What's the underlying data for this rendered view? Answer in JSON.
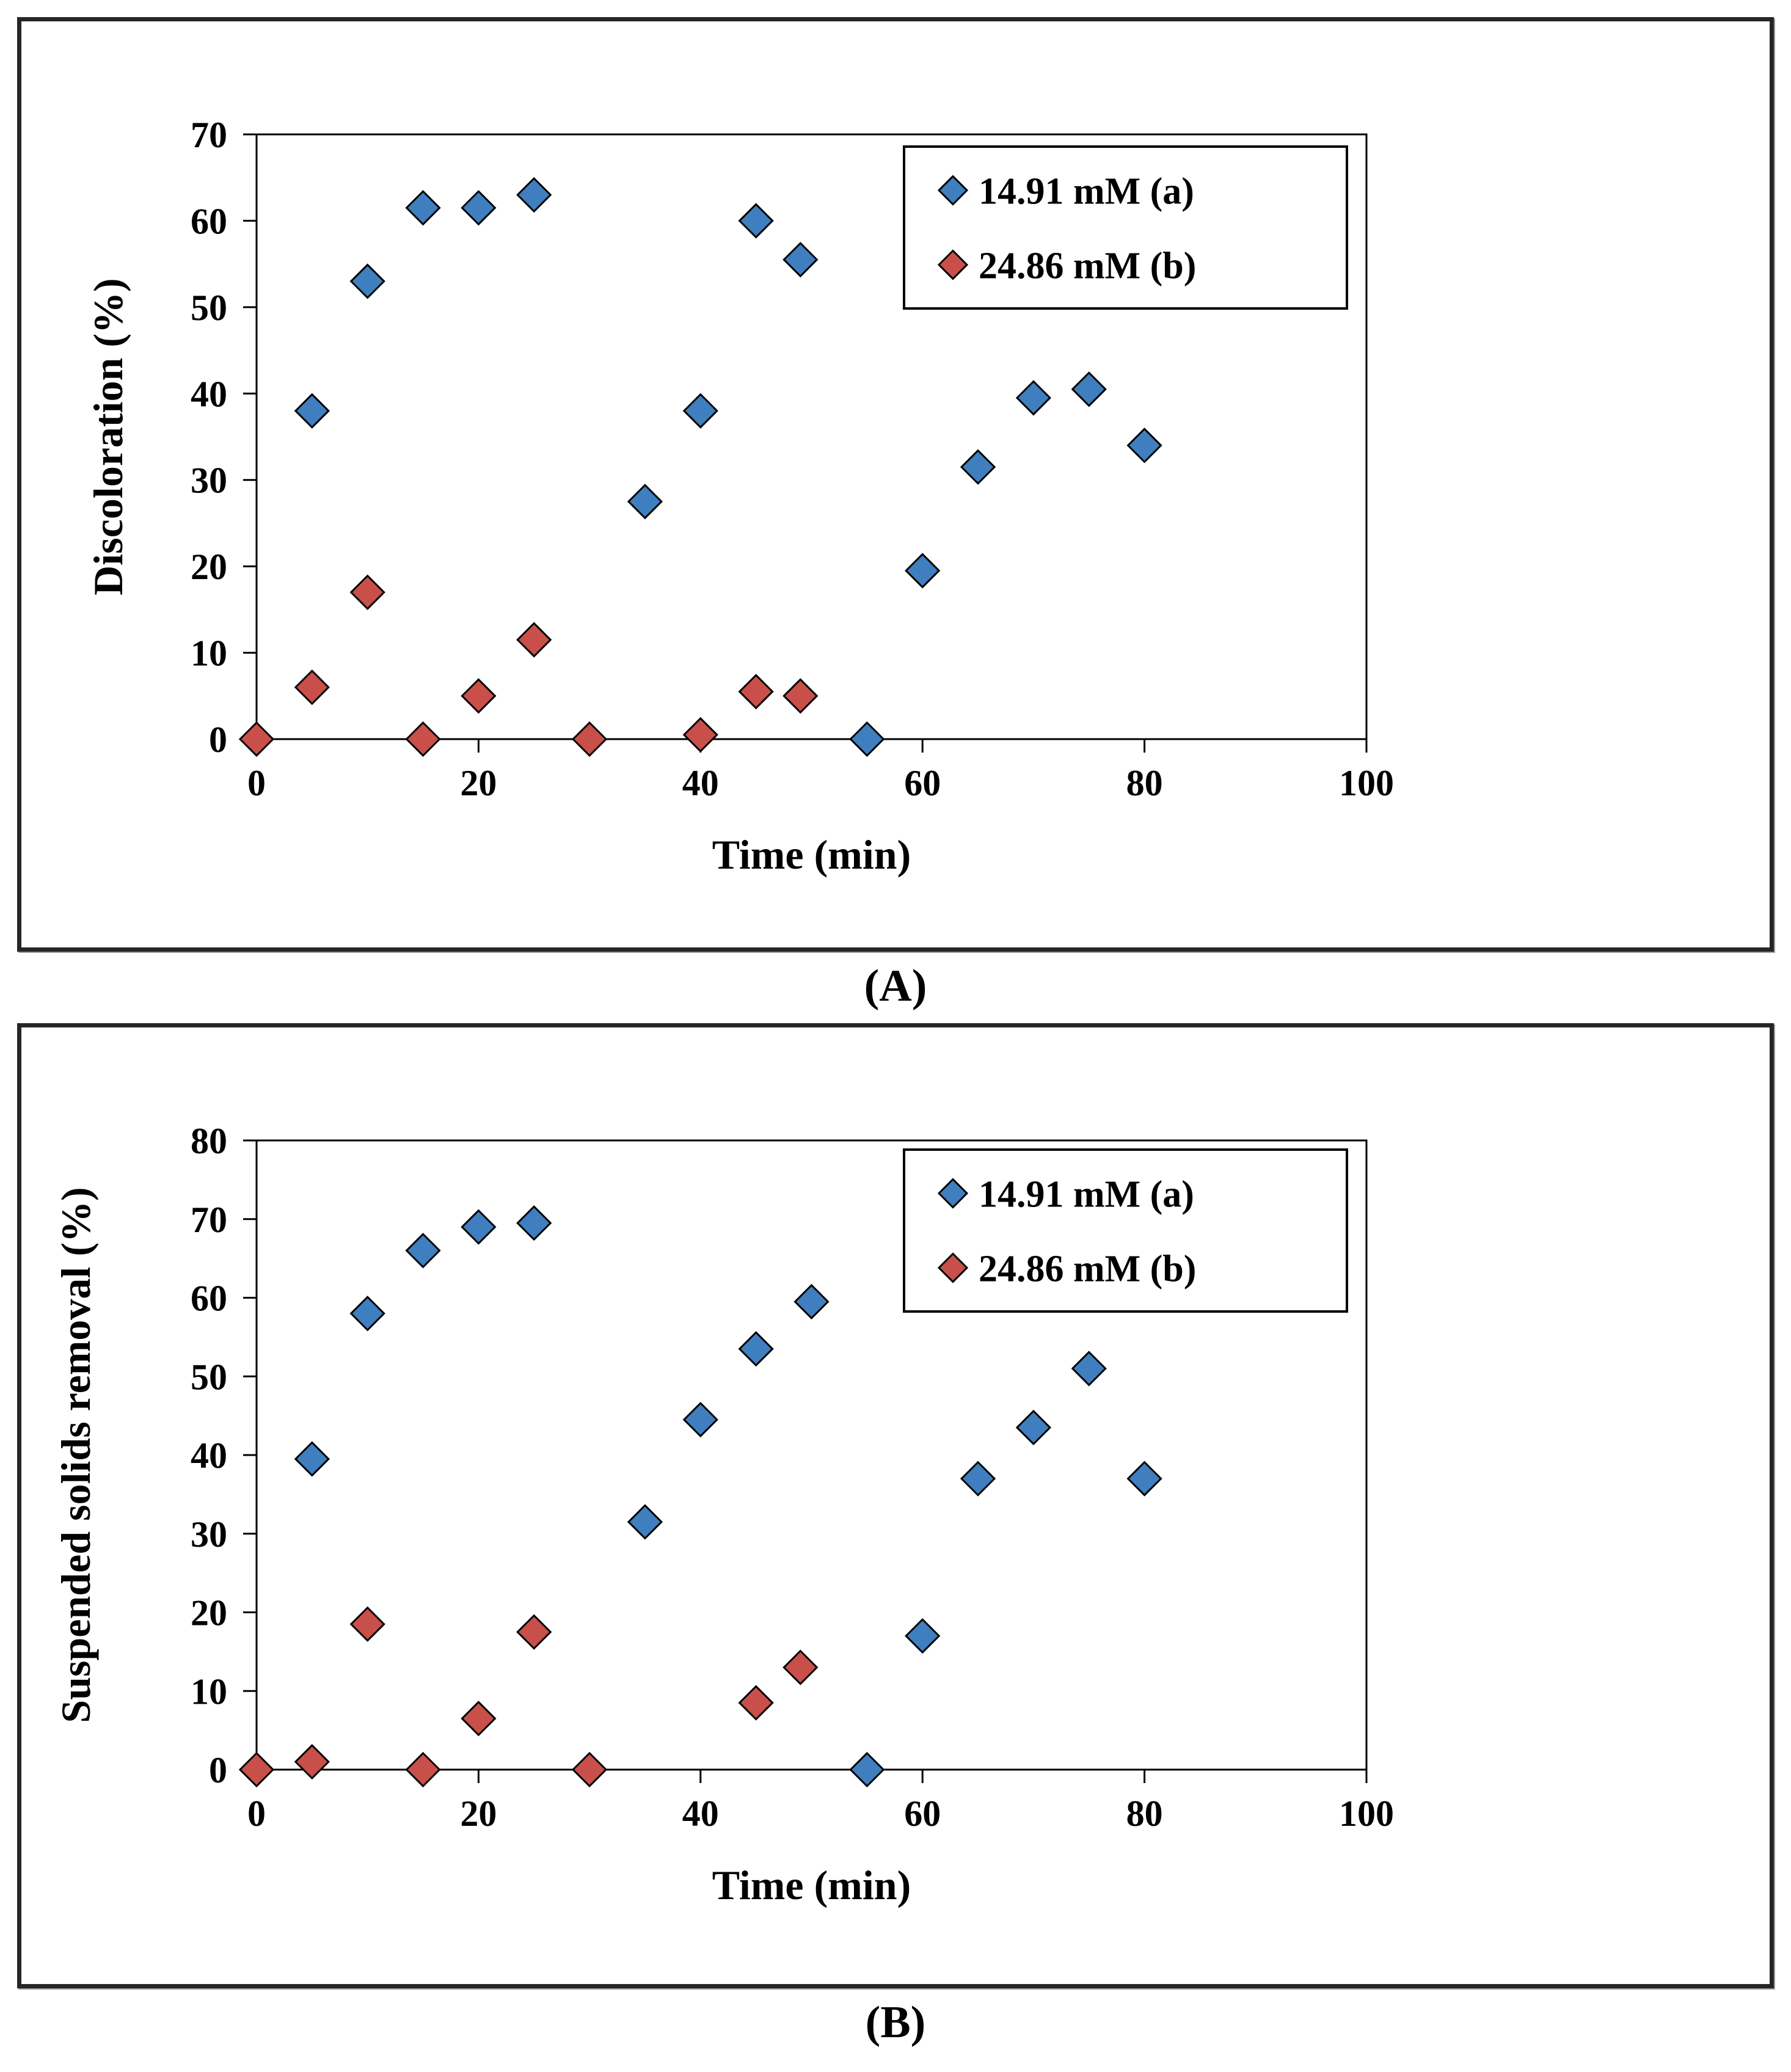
{
  "page": {
    "background": "#ffffff"
  },
  "colors": {
    "series_blue": "#3f7fbf",
    "series_red": "#c9504a",
    "marker_stroke": "#000000",
    "axis": "#000000",
    "panel_border": "#262626"
  },
  "panels": [
    {
      "label": "(A)"
    },
    {
      "label": "(B)"
    }
  ],
  "chart_data": [
    {
      "type": "scatter",
      "title": "",
      "xlabel": "Time (min)",
      "ylabel": "Discoloration (%)",
      "xlim": [
        0,
        100
      ],
      "ylim": [
        0,
        70
      ],
      "xticks": [
        0,
        20,
        40,
        60,
        80,
        100
      ],
      "yticks": [
        0,
        10,
        20,
        30,
        40,
        50,
        60,
        70
      ],
      "grid": false,
      "legend_position": "top-right-inside",
      "series": [
        {
          "name": "14.91 mM (a)",
          "marker": "diamond",
          "color": "#3f7fbf",
          "points": [
            [
              5,
              38
            ],
            [
              10,
              53
            ],
            [
              15,
              61.5
            ],
            [
              20,
              61.5
            ],
            [
              25,
              63
            ],
            [
              35,
              27.5
            ],
            [
              40,
              38
            ],
            [
              45,
              60
            ],
            [
              49,
              55.5
            ],
            [
              55,
              0
            ],
            [
              60,
              19.5
            ],
            [
              65,
              31.5
            ],
            [
              70,
              39.5
            ],
            [
              75,
              40.5
            ],
            [
              80,
              34
            ]
          ]
        },
        {
          "name": "24.86 mM (b)",
          "marker": "diamond",
          "color": "#c9504a",
          "points": [
            [
              0,
              0
            ],
            [
              5,
              6
            ],
            [
              10,
              17
            ],
            [
              15,
              0
            ],
            [
              20,
              5
            ],
            [
              25,
              11.5
            ],
            [
              30,
              0
            ],
            [
              40,
              0.5
            ],
            [
              45,
              5.5
            ],
            [
              49,
              5
            ]
          ]
        }
      ]
    },
    {
      "type": "scatter",
      "title": "",
      "xlabel": "Time (min)",
      "ylabel": "Suspended solids removal (%)",
      "xlim": [
        0,
        100
      ],
      "ylim": [
        0,
        80
      ],
      "xticks": [
        0,
        20,
        40,
        60,
        80,
        100
      ],
      "yticks": [
        0,
        10,
        20,
        30,
        40,
        50,
        60,
        70,
        80
      ],
      "grid": false,
      "legend_position": "top-right-inside",
      "series": [
        {
          "name": "14.91 mM (a)",
          "marker": "diamond",
          "color": "#3f7fbf",
          "points": [
            [
              5,
              39.5
            ],
            [
              10,
              58
            ],
            [
              15,
              66
            ],
            [
              20,
              69
            ],
            [
              25,
              69.5
            ],
            [
              35,
              31.5
            ],
            [
              40,
              44.5
            ],
            [
              45,
              53.5
            ],
            [
              50,
              59.5
            ],
            [
              55,
              0
            ],
            [
              60,
              17
            ],
            [
              65,
              37
            ],
            [
              70,
              43.5
            ],
            [
              75,
              51
            ],
            [
              80,
              37
            ]
          ]
        },
        {
          "name": "24.86 mM (b)",
          "marker": "diamond",
          "color": "#c9504a",
          "points": [
            [
              0,
              0
            ],
            [
              5,
              1
            ],
            [
              10,
              18.5
            ],
            [
              15,
              0
            ],
            [
              20,
              6.5
            ],
            [
              25,
              17.5
            ],
            [
              30,
              0
            ],
            [
              45,
              8.5
            ],
            [
              49,
              13
            ]
          ]
        }
      ]
    }
  ]
}
